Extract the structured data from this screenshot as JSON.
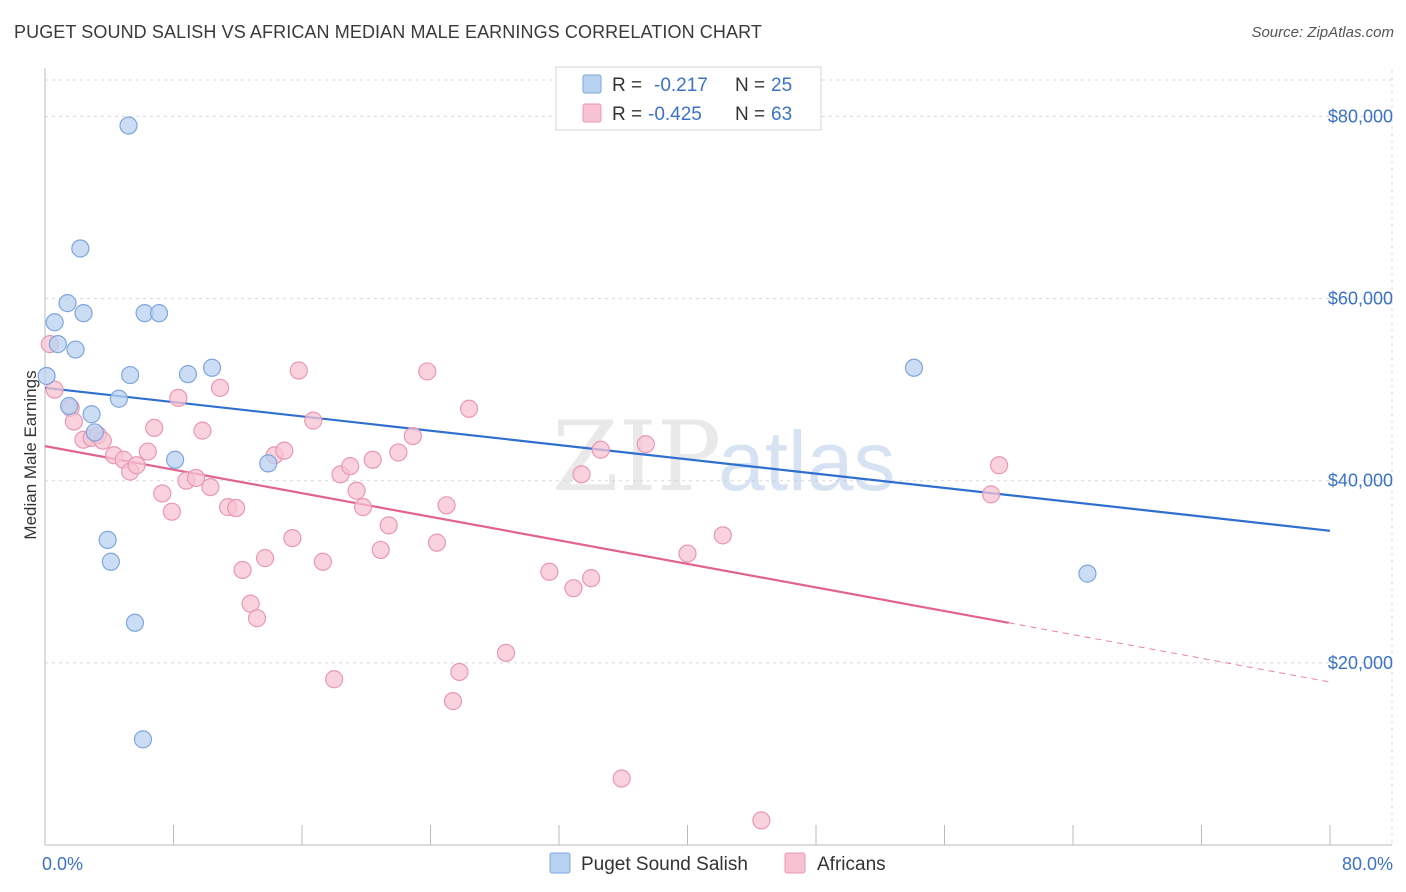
{
  "title": "PUGET SOUND SALISH VS AFRICAN MEDIAN MALE EARNINGS CORRELATION CHART",
  "source": "Source: ZipAtlas.com",
  "watermark": {
    "part1": "ZIP",
    "part2": "atlas"
  },
  "colors": {
    "blue_fill": "#b8d2f2",
    "blue_stroke": "#7ea6dc",
    "blue_line": "#2f6fd0",
    "pink_fill": "#f7c3d3",
    "pink_stroke": "#e898b2",
    "pink_line": "#e0648e",
    "axis_text": "#3b72c4",
    "grid": "#d8d8d8"
  },
  "legend": {
    "r_label": "R =",
    "n_label": "N =",
    "rows": [
      {
        "r": "-0.217",
        "n": "25"
      },
      {
        "r": "-0.425",
        "n": "63"
      }
    ]
  },
  "chart_data": {
    "type": "scatter",
    "title": "PUGET SOUND SALISH VS AFRICAN MEDIAN MALE EARNINGS CORRELATION CHART",
    "xlabel": "",
    "ylabel": "Median Male Earnings",
    "xlim": [
      0,
      80
    ],
    "ylim": [
      0,
      84000
    ],
    "x_tick_labels": [
      "0.0%",
      "80.0%"
    ],
    "y_ticks": [
      20000,
      40000,
      60000,
      80000
    ],
    "y_tick_labels": [
      "$20,000",
      "$40,000",
      "$60,000",
      "$80,000"
    ],
    "grid": true,
    "legend_position": "top-center",
    "series": [
      {
        "name": "Puget Sound Salish",
        "color": "#b8d2f2",
        "trend": {
          "x0": 0,
          "y0": 50200,
          "x1": 80,
          "y1": 34500
        },
        "points": [
          [
            5.2,
            79000
          ],
          [
            2.2,
            65500
          ],
          [
            1.4,
            59500
          ],
          [
            0.6,
            57400
          ],
          [
            2.4,
            58400
          ],
          [
            6.2,
            58400
          ],
          [
            7.1,
            58400
          ],
          [
            0.8,
            55000
          ],
          [
            1.9,
            54400
          ],
          [
            5.3,
            51600
          ],
          [
            8.9,
            51700
          ],
          [
            10.4,
            52400
          ],
          [
            0.1,
            51500
          ],
          [
            4.6,
            49000
          ],
          [
            1.5,
            48200
          ],
          [
            2.9,
            47300
          ],
          [
            3.1,
            45300
          ],
          [
            8.1,
            42300
          ],
          [
            13.9,
            41900
          ],
          [
            3.9,
            33500
          ],
          [
            4.1,
            31100
          ],
          [
            5.6,
            24400
          ],
          [
            6.1,
            11600
          ],
          [
            54.1,
            52400
          ],
          [
            64.9,
            29800
          ]
        ]
      },
      {
        "name": "Africans",
        "color": "#f7c3d3",
        "trend": {
          "x0": 0,
          "y0": 43800,
          "x1": 60,
          "y1": 24400,
          "dash_to_x": 80,
          "dash_to_y": 17900
        },
        "points": [
          [
            0.3,
            55000
          ],
          [
            0.6,
            50000
          ],
          [
            1.6,
            48000
          ],
          [
            1.8,
            46500
          ],
          [
            2.4,
            44500
          ],
          [
            2.9,
            44700
          ],
          [
            3.3,
            45000
          ],
          [
            3.6,
            44400
          ],
          [
            4.3,
            42800
          ],
          [
            4.9,
            42300
          ],
          [
            5.3,
            41000
          ],
          [
            5.7,
            41700
          ],
          [
            6.4,
            43200
          ],
          [
            6.8,
            45800
          ],
          [
            7.3,
            38600
          ],
          [
            7.9,
            36600
          ],
          [
            8.3,
            49100
          ],
          [
            8.8,
            40000
          ],
          [
            9.4,
            40300
          ],
          [
            9.8,
            45500
          ],
          [
            10.3,
            39300
          ],
          [
            10.9,
            50200
          ],
          [
            11.4,
            37100
          ],
          [
            11.9,
            37000
          ],
          [
            12.3,
            30200
          ],
          [
            12.8,
            26500
          ],
          [
            13.2,
            24900
          ],
          [
            13.7,
            31500
          ],
          [
            14.3,
            42800
          ],
          [
            14.9,
            43300
          ],
          [
            15.4,
            33700
          ],
          [
            15.8,
            52100
          ],
          [
            16.7,
            46600
          ],
          [
            17.3,
            31100
          ],
          [
            18.0,
            18200
          ],
          [
            18.4,
            40700
          ],
          [
            19.0,
            41600
          ],
          [
            19.4,
            38900
          ],
          [
            19.8,
            37100
          ],
          [
            20.4,
            42300
          ],
          [
            20.9,
            32400
          ],
          [
            21.4,
            35100
          ],
          [
            22.0,
            43100
          ],
          [
            22.9,
            44900
          ],
          [
            23.8,
            52000
          ],
          [
            24.4,
            33200
          ],
          [
            25.0,
            37300
          ],
          [
            25.4,
            15800
          ],
          [
            25.8,
            19000
          ],
          [
            26.4,
            47900
          ],
          [
            28.7,
            21100
          ],
          [
            31.4,
            30000
          ],
          [
            32.9,
            28200
          ],
          [
            33.4,
            40700
          ],
          [
            34.0,
            29300
          ],
          [
            34.6,
            43400
          ],
          [
            35.9,
            7300
          ],
          [
            37.4,
            44000
          ],
          [
            40.0,
            32000
          ],
          [
            42.2,
            34000
          ],
          [
            44.6,
            2700
          ],
          [
            58.9,
            38500
          ],
          [
            59.4,
            41700
          ]
        ]
      }
    ]
  }
}
